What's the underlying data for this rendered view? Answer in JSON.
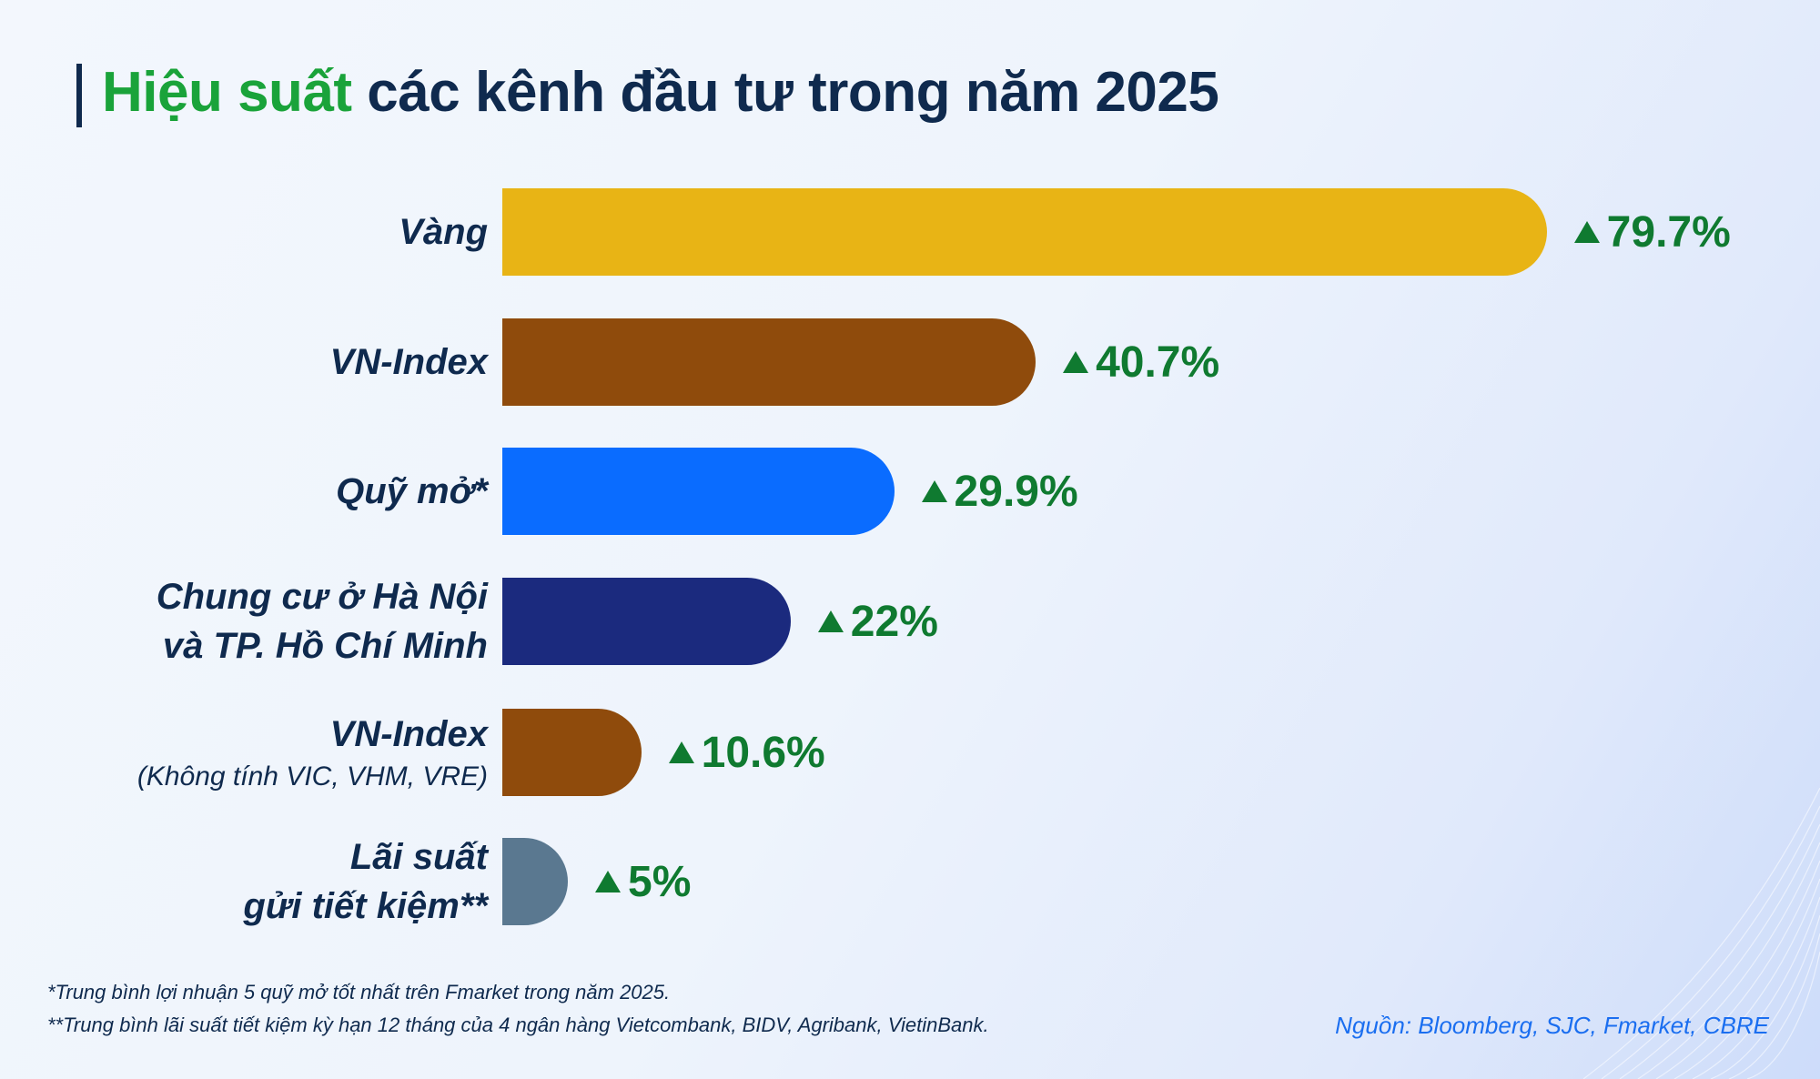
{
  "title": {
    "highlight": "Hiệu suất",
    "rest": " các kênh đầu tư trong năm 2025"
  },
  "chart_data": {
    "type": "bar",
    "orientation": "horizontal",
    "title": "Hiệu suất các kênh đầu tư trong năm 2025",
    "categories": [
      {
        "label": "Vàng",
        "sub": ""
      },
      {
        "label": "VN-Index",
        "sub": ""
      },
      {
        "label": "Quỹ mở*",
        "sub": ""
      },
      {
        "label": "Chung cư ở Hà Nội",
        "label2": "và TP. Hồ Chí Minh",
        "sub": ""
      },
      {
        "label": "VN-Index",
        "sub": "(Không tính VIC, VHM, VRE)"
      },
      {
        "label": "Lãi suất",
        "label2": "gửi tiết kiệm**",
        "sub": ""
      }
    ],
    "values": [
      79.7,
      40.7,
      29.9,
      22,
      10.6,
      5
    ],
    "value_labels": [
      "79.7%",
      "40.7%",
      "29.9%",
      "22%",
      "10.6%",
      "5%"
    ],
    "colors": [
      "#e8b415",
      "#8f4b0c",
      "#0a6cff",
      "#1b2a7e",
      "#8f4b0c",
      "#5a7890"
    ],
    "value_color": "#0f7a30",
    "indicator_icon": "triangle-up-icon",
    "grid": false,
    "xlabel": "",
    "ylabel": ""
  },
  "footnotes": [
    "*Trung bình lợi nhuận 5 quỹ mở tốt nhất trên Fmarket trong năm 2025.",
    "**Trung bình lãi suất tiết kiệm kỳ hạn 12 tháng của 4 ngân hàng Vietcombank, BIDV, Agribank, VietinBank."
  ],
  "source": "Nguồn: Bloomberg, SJC, Fmarket, CBRE"
}
